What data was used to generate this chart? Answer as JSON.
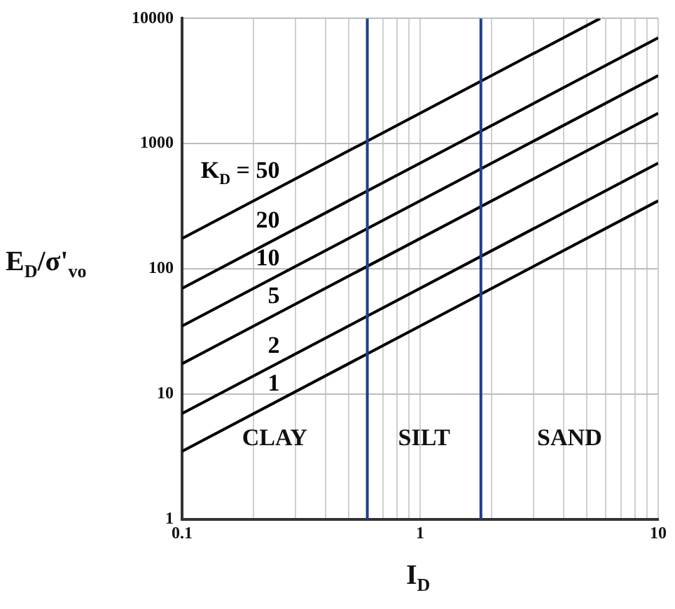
{
  "chart_data": {
    "type": "line",
    "xlabel": "I$_{D}$",
    "ylabel": "E$_{D}$/σ'$_{vo}$",
    "log": "xy",
    "grid": true,
    "legend": false,
    "marker": "none",
    "xlim": [
      0.1,
      10
    ],
    "ylim": [
      1,
      10000
    ],
    "xticks": [
      0.1,
      {
        "value": 0.2,
        "label": null
      },
      {
        "value": 0.3,
        "label": null
      },
      {
        "value": 0.4,
        "label": null
      },
      {
        "value": 0.5,
        "label": null
      },
      {
        "value": 0.6,
        "label": null
      },
      {
        "value": 0.7,
        "label": null
      },
      {
        "value": 0.8,
        "label": null
      },
      {
        "value": 0.9,
        "label": null
      },
      1,
      {
        "value": 2,
        "label": null
      },
      {
        "value": 3,
        "label": null
      },
      {
        "value": 4,
        "label": null
      },
      {
        "value": 5,
        "label": null
      },
      {
        "value": 6,
        "label": null
      },
      {
        "value": 7,
        "label": null
      },
      {
        "value": 8,
        "label": null
      },
      {
        "value": 9,
        "label": null
      },
      10
    ],
    "yticks": [
      1,
      10,
      100,
      1000,
      10000
    ],
    "series": [
      {
        "name": "K$_{D}$ = 50",
        "color": "#000000",
        "x": [
          0.1,
          5.7
        ],
        "values": [
          175,
          10000
        ]
      },
      {
        "name": "20",
        "color": "#000000",
        "x": [
          0.1,
          10
        ],
        "values": [
          70,
          7000
        ]
      },
      {
        "name": "10",
        "color": "#000000",
        "x": [
          0.1,
          10
        ],
        "values": [
          35,
          3500
        ]
      },
      {
        "name": "5",
        "color": "#000000",
        "x": [
          0.1,
          10
        ],
        "values": [
          17.5,
          1750
        ]
      },
      {
        "name": "2",
        "color": "#000000",
        "x": [
          0.1,
          10
        ],
        "values": [
          7,
          700
        ]
      },
      {
        "name": "1",
        "color": "#000000",
        "x": [
          0.1,
          10
        ],
        "values": [
          3.5,
          350
        ]
      }
    ],
    "ref_lines": [
      {
        "axis": "x",
        "value": 0.6,
        "color": "#1f3f8a"
      },
      {
        "axis": "x",
        "value": 1.8,
        "color": "#1f3f8a"
      }
    ],
    "annotations": [
      "CLAY",
      "SILT",
      "SAND"
    ]
  }
}
